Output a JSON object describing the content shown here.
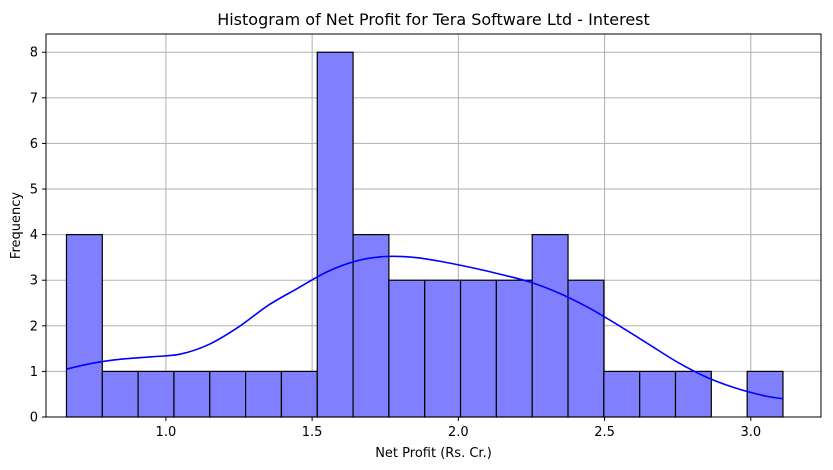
{
  "chart_data": {
    "type": "bar",
    "title": "Histogram of Net Profit for Tera Software Ltd - Interest",
    "xlabel": "Net Profit (Rs. Cr.)",
    "ylabel": "Frequency",
    "xlim": [
      0.59,
      3.24
    ],
    "ylim": [
      0,
      8.4
    ],
    "x_ticks": [
      1.0,
      1.5,
      2.0,
      2.5,
      3.0
    ],
    "x_tick_labels": [
      "1.0",
      "1.5",
      "2.0",
      "2.5",
      "3.0"
    ],
    "y_ticks": [
      0,
      1,
      2,
      3,
      4,
      5,
      6,
      7,
      8
    ],
    "y_tick_labels": [
      "0",
      "1",
      "2",
      "3",
      "4",
      "5",
      "6",
      "7",
      "8"
    ],
    "grid": true,
    "bin_edges": [
      0.66,
      0.7825,
      0.905,
      1.0275,
      1.15,
      1.2725,
      1.395,
      1.5175,
      1.64,
      1.7625,
      1.885,
      2.0075,
      2.13,
      2.2525,
      2.375,
      2.4975,
      2.62,
      2.7425,
      2.865,
      2.9875,
      3.11
    ],
    "values": [
      4,
      1,
      1,
      1,
      1,
      1,
      1,
      8,
      4,
      3,
      3,
      3,
      3,
      4,
      3,
      1,
      1,
      1,
      0,
      1
    ],
    "kde": {
      "x": [
        0.66,
        0.75,
        0.85,
        0.95,
        1.05,
        1.15,
        1.25,
        1.35,
        1.45,
        1.55,
        1.65,
        1.75,
        1.85,
        1.95,
        2.05,
        2.15,
        2.25,
        2.35,
        2.45,
        2.55,
        2.65,
        2.75,
        2.85,
        2.95,
        3.05,
        3.11
      ],
      "y": [
        1.05,
        1.18,
        1.27,
        1.32,
        1.38,
        1.6,
        1.98,
        2.45,
        2.82,
        3.18,
        3.42,
        3.52,
        3.5,
        3.4,
        3.27,
        3.12,
        2.95,
        2.7,
        2.38,
        2.0,
        1.6,
        1.2,
        0.87,
        0.63,
        0.46,
        0.4
      ]
    },
    "colors": {
      "bar_fill": "#8080ff",
      "bar_edge": "#000000",
      "kde_line": "#0000ff",
      "grid": "#b0b0b0"
    }
  }
}
